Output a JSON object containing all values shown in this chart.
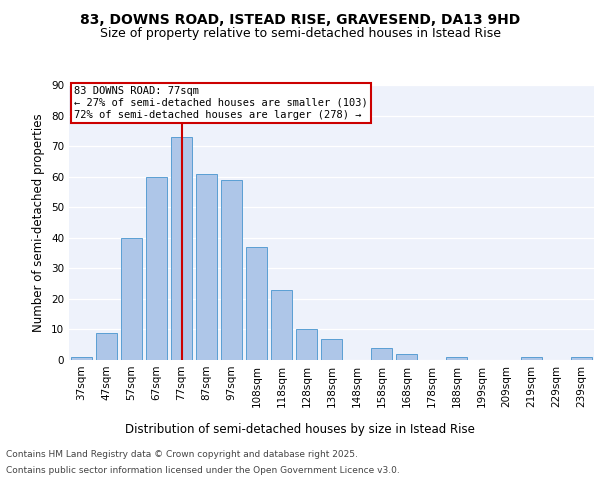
{
  "title1": "83, DOWNS ROAD, ISTEAD RISE, GRAVESEND, DA13 9HD",
  "title2": "Size of property relative to semi-detached houses in Istead Rise",
  "xlabel": "Distribution of semi-detached houses by size in Istead Rise",
  "ylabel": "Number of semi-detached properties",
  "bar_labels": [
    "37sqm",
    "47sqm",
    "57sqm",
    "67sqm",
    "77sqm",
    "87sqm",
    "97sqm",
    "108sqm",
    "118sqm",
    "128sqm",
    "138sqm",
    "148sqm",
    "158sqm",
    "168sqm",
    "178sqm",
    "188sqm",
    "199sqm",
    "209sqm",
    "219sqm",
    "229sqm",
    "239sqm"
  ],
  "bar_values": [
    1,
    9,
    40,
    60,
    73,
    61,
    59,
    37,
    23,
    10,
    7,
    0,
    4,
    2,
    0,
    1,
    0,
    0,
    1,
    0,
    1
  ],
  "bar_color": "#aec6e8",
  "bar_edge_color": "#5a9fd4",
  "annotation_label": "83 DOWNS ROAD: 77sqm",
  "annotation_smaller": "← 27% of semi-detached houses are smaller (103)",
  "annotation_larger": "72% of semi-detached houses are larger (278) →",
  "vline_color": "#cc0000",
  "annotation_box_color": "#cc0000",
  "ylim": [
    0,
    90
  ],
  "yticks": [
    0,
    10,
    20,
    30,
    40,
    50,
    60,
    70,
    80,
    90
  ],
  "background_color": "#eef2fb",
  "footer_line1": "Contains HM Land Registry data © Crown copyright and database right 2025.",
  "footer_line2": "Contains public sector information licensed under the Open Government Licence v3.0.",
  "title_fontsize": 10,
  "subtitle_fontsize": 9,
  "axis_label_fontsize": 8.5,
  "tick_fontsize": 7.5,
  "annotation_fontsize": 7.5,
  "footer_fontsize": 6.5
}
